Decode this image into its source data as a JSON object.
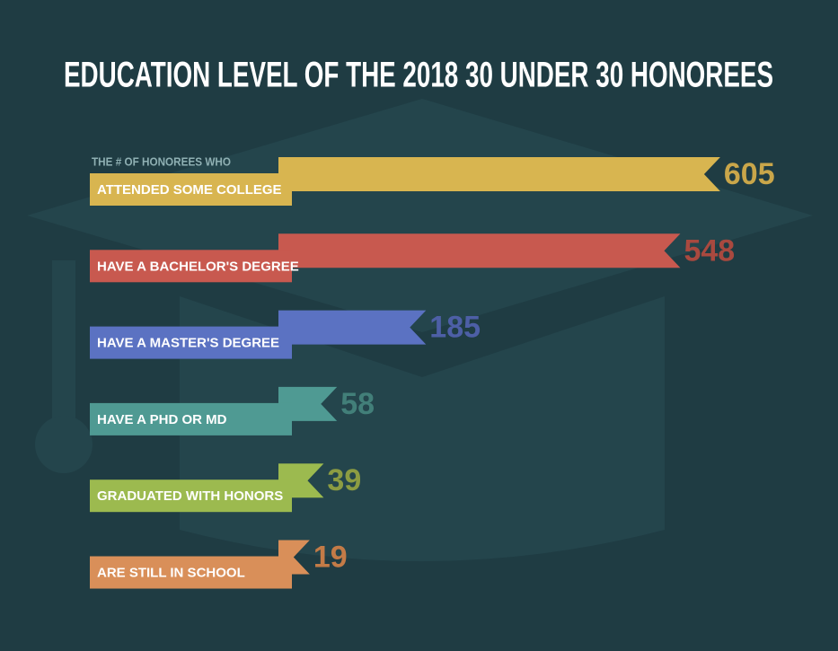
{
  "chart_data": {
    "type": "bar",
    "orientation": "horizontal",
    "title": "EDUCATION LEVEL OF THE 2018 30 UNDER 30 HONOREES",
    "subtitle": "THE # OF HONOREES WHO",
    "categories": [
      "ATTENDED SOME COLLEGE",
      "HAVE A BACHELOR'S DEGREE",
      "HAVE A MASTER'S DEGREE",
      "HAVE A PHD OR MD",
      "GRADUATED WITH HONORS",
      "ARE STILL IN SCHOOL"
    ],
    "values": [
      605,
      548,
      185,
      58,
      39,
      19
    ],
    "colors": [
      "#d8b550",
      "#c8594f",
      "#5b72c2",
      "#4f9a93",
      "#9cba4f",
      "#d98f59"
    ],
    "label_colors": [
      "#c9a64a",
      "#a9493f",
      "#4d5fa6",
      "#427f79",
      "#8c9c42",
      "#c37b47"
    ]
  }
}
